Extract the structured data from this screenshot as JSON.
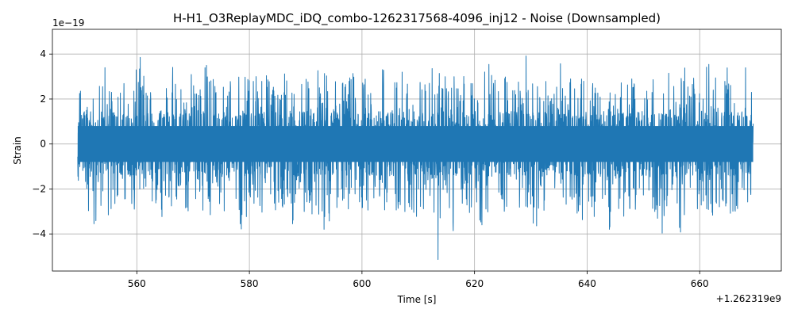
{
  "chart_data": {
    "type": "line",
    "title": "H-H1_O3ReplayMDC_iDQ_combo-1262317568-4096_inj12 - Noise (Downsampled)",
    "xlabel": "Time [s]",
    "ylabel": "Strain",
    "x_offset_label": "+1.262319e9",
    "y_scale_label": "1e−19",
    "xlim": [
      545.0,
      674.5
    ],
    "ylim": [
      -5.65,
      5.1
    ],
    "x_ticks": [
      560,
      580,
      600,
      620,
      640,
      660
    ],
    "x_tick_labels": [
      "560",
      "580",
      "600",
      "620",
      "640",
      "660"
    ],
    "y_ticks": [
      -4,
      -2,
      0,
      2,
      4
    ],
    "y_tick_labels": [
      "−4",
      "−2",
      "0",
      "2",
      "4"
    ],
    "grid": true,
    "line_color": "#1f77b4",
    "series": [
      {
        "x_range": [
          549.5,
          669.5
        ],
        "envelope_upper": [
          2.6,
          2.8,
          2.2,
          3.1,
          2.7,
          4.4,
          2.9,
          3.3,
          2.6,
          3.5,
          2.8,
          4.1,
          3.0,
          2.7,
          3.3,
          2.9,
          3.2,
          3.6,
          2.8,
          3.0,
          3.4,
          2.7,
          3.1,
          3.9,
          2.9,
          3.2,
          2.8,
          3.0,
          3.6,
          3.3,
          2.9,
          3.2,
          3.8,
          3.0,
          3.4,
          2.8,
          3.1,
          3.3,
          2.7,
          3.0,
          3.5,
          2.9,
          4.3,
          3.0,
          3.2,
          2.8,
          3.4,
          3.0,
          2.9,
          3.3,
          2.8,
          3.1,
          2.7,
          3.2,
          3.9,
          3.0,
          2.8,
          3.4,
          3.1,
          2.9,
          3.3,
          3.0,
          2.8,
          3.5,
          3.2,
          3.0,
          3.7,
          2.9,
          3.3,
          3.0,
          2.8,
          3.4,
          3.1,
          4.5,
          3.0,
          2.9,
          3.3,
          3.6,
          3.0,
          2.8,
          4.6,
          3.1,
          3.4,
          2.9,
          3.2,
          3.0,
          3.8,
          2.8,
          3.3,
          3.1,
          2.9,
          3.4,
          3.0,
          3.2,
          2.8,
          3.5,
          3.1,
          3.0,
          2.9,
          3.3,
          3.6,
          3.0,
          2.8,
          3.4,
          3.1,
          3.2,
          2.9,
          3.0,
          3.5,
          3.1,
          2.8,
          3.3,
          3.9,
          3.0,
          3.2,
          2.9,
          4.2,
          3.1,
          4.2,
          3.0,
          2.1
        ],
        "envelope_lower": [
          -1.7,
          -2.9,
          -3.2,
          -4.1,
          -3.0,
          -3.4,
          -2.9,
          -3.3,
          -2.8,
          -3.1,
          -3.6,
          -3.0,
          -2.9,
          -3.3,
          -2.8,
          -4.1,
          -3.0,
          -3.2,
          -2.9,
          -3.4,
          -3.1,
          -2.8,
          -3.3,
          -3.0,
          -3.6,
          -2.9,
          -4.3,
          -3.1,
          -3.0,
          -4.4,
          -3.2,
          -2.9,
          -3.3,
          -3.0,
          -2.8,
          -3.4,
          -3.1,
          -3.5,
          -4.3,
          -3.0,
          -3.2,
          -2.9,
          -3.6,
          -3.1,
          -4.6,
          -3.0,
          -3.3,
          -2.9,
          -3.2,
          -3.0,
          -3.4,
          -2.8,
          -3.1,
          -3.3,
          -3.0,
          -2.9,
          -3.5,
          -3.0,
          -3.2,
          -2.9,
          -3.4,
          -3.1,
          -3.0,
          -3.3,
          -5.3,
          -3.2,
          -3.0,
          -4.8,
          -3.1,
          -2.9,
          -3.3,
          -3.0,
          -5.0,
          -3.2,
          -2.9,
          -3.4,
          -3.0,
          -3.1,
          -3.5,
          -2.8,
          -3.2,
          -5.1,
          -3.0,
          -3.3,
          -2.9,
          -3.1,
          -3.4,
          -3.0,
          -2.8,
          -3.2,
          -3.6,
          -3.0,
          -3.3,
          -3.1,
          -4.6,
          -3.0,
          -2.9,
          -3.4,
          -3.1,
          -3.2,
          -2.8,
          -3.6,
          -3.0,
          -3.3,
          -4.3,
          -3.1,
          -2.9,
          -4.1,
          -3.2,
          -3.0,
          -3.4,
          -2.9,
          -3.1,
          -3.3,
          -3.0,
          -2.8,
          -3.2,
          -3.0,
          -3.4,
          -2.9,
          -2.4
        ],
        "core_amplitude": 1.45
      }
    ]
  }
}
